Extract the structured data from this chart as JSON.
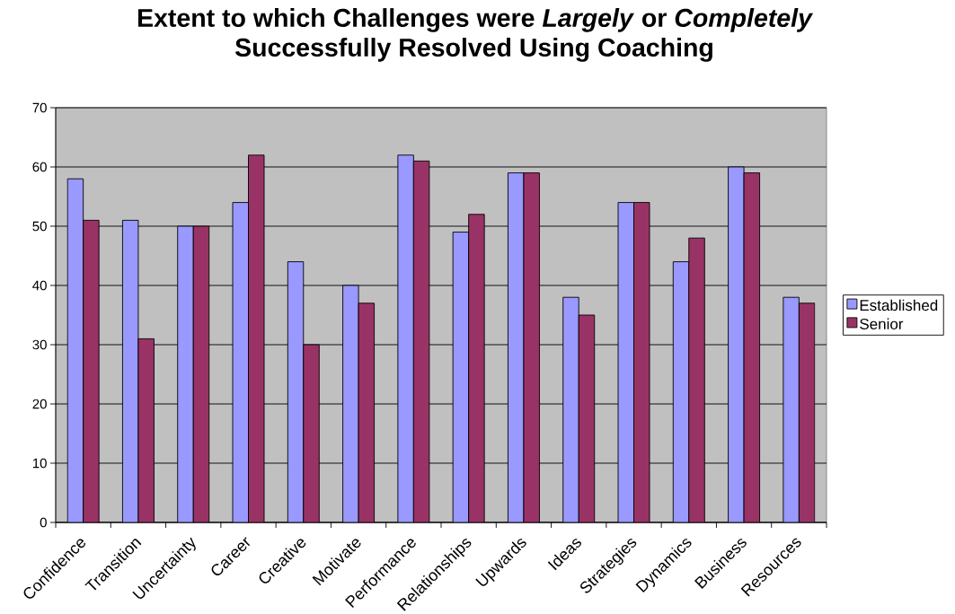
{
  "chart_data": {
    "type": "bar",
    "title": "Extent to which Challenges were *Largely* or *Completely* Successfully Resolved Using Coaching",
    "categories": [
      "Confidence",
      "Transition",
      "Uncertainty",
      "Career",
      "Creative",
      "Motivate",
      "Performance",
      "Relationships",
      "Upwards",
      "Ideas",
      "Strategies",
      "Dynamics",
      "Business",
      "Resources"
    ],
    "series": [
      {
        "name": "Established",
        "color": "#9999ff",
        "values": [
          58,
          51,
          50,
          54,
          44,
          40,
          62,
          49,
          59,
          38,
          54,
          44,
          60,
          38
        ]
      },
      {
        "name": "Senior",
        "color": "#993366",
        "values": [
          51,
          31,
          50,
          62,
          30,
          37,
          61,
          52,
          59,
          35,
          54,
          48,
          59,
          37
        ]
      }
    ],
    "ylim": [
      0,
      70
    ],
    "yticks": [
      0,
      10,
      20,
      30,
      40,
      50,
      60,
      70
    ],
    "grid": "y",
    "legend": "right"
  }
}
